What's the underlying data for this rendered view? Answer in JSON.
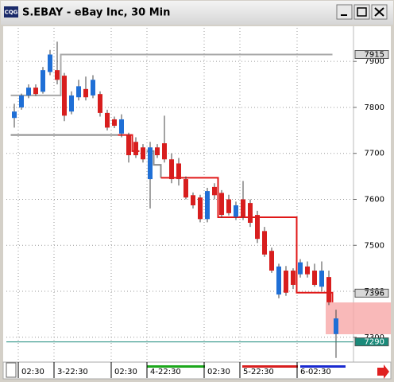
{
  "window": {
    "title": "S.EBAY - eBay Inc, 30 Min",
    "icon": "CQG"
  },
  "chart_data": {
    "type": "candlestick",
    "open": [
      7777,
      7800,
      7826,
      7843,
      7834,
      7877,
      7881,
      7869,
      7791,
      7822,
      7840,
      7826,
      7829,
      7788,
      7774,
      7743,
      7739,
      7725,
      7713,
      7644,
      7713,
      7722,
      7687,
      7678,
      7644,
      7609,
      7604,
      7557,
      7627,
      7614,
      7600,
      7562,
      7600,
      7592,
      7566,
      7531,
      7488,
      7393,
      7445,
      7445,
      7437,
      7454,
      7445,
      7410,
      7431,
      7307
    ],
    "high": [
      7808,
      7830,
      7850,
      7850,
      7888,
      7925,
      7943,
      7875,
      7835,
      7860,
      7867,
      7870,
      7835,
      7795,
      7780,
      7785,
      7745,
      7735,
      7720,
      7725,
      7720,
      7782,
      7700,
      7690,
      7650,
      7615,
      7610,
      7625,
      7635,
      7620,
      7610,
      7595,
      7640,
      7600,
      7575,
      7540,
      7495,
      7460,
      7455,
      7450,
      7470,
      7465,
      7460,
      7465,
      7445,
      7360
    ],
    "low": [
      7756,
      7795,
      7820,
      7825,
      7830,
      7870,
      7850,
      7770,
      7785,
      7815,
      7815,
      7820,
      7780,
      7750,
      7755,
      7735,
      7680,
      7690,
      7680,
      7580,
      7690,
      7680,
      7635,
      7630,
      7600,
      7580,
      7550,
      7550,
      7600,
      7560,
      7565,
      7555,
      7555,
      7540,
      7505,
      7475,
      7440,
      7385,
      7390,
      7405,
      7430,
      7430,
      7410,
      7400,
      7370,
      7255
    ],
    "close": [
      7791,
      7826,
      7843,
      7829,
      7881,
      7915,
      7860,
      7782,
      7826,
      7846,
      7822,
      7860,
      7788,
      7756,
      7760,
      7774,
      7696,
      7696,
      7687,
      7713,
      7696,
      7687,
      7644,
      7644,
      7604,
      7587,
      7557,
      7618,
      7609,
      7566,
      7570,
      7587,
      7562,
      7549,
      7514,
      7480,
      7445,
      7454,
      7397,
      7414,
      7463,
      7437,
      7414,
      7445,
      7376,
      7341
    ],
    "up_color": "#1f6fd6",
    "down_color": "#d81e1e",
    "overlays": [
      {
        "color": "#a8a8a8",
        "values": [
          7826,
          7826,
          7826,
          7826,
          7826,
          7826,
          7826,
          7915,
          7915,
          7915,
          7915,
          7915,
          7915,
          7915,
          7915,
          7915,
          7915,
          7915,
          7915,
          7915,
          7915,
          7915,
          7915,
          7915,
          7915,
          7915,
          7915,
          7915,
          7915,
          7915,
          7915,
          7915,
          7915,
          7915,
          7915,
          7915,
          7915,
          7915,
          7915,
          7915,
          7915,
          7915,
          7915,
          7915,
          7915,
          7915
        ]
      },
      {
        "color": "#8c8c8c",
        "values": [
          7740,
          7740,
          7740,
          7740,
          7740,
          7740,
          7740,
          7740,
          7740,
          7740,
          7740,
          7740,
          7740,
          7740,
          7740,
          7740,
          null,
          null,
          null,
          7705,
          7675,
          7647,
          null,
          null,
          null,
          null,
          null,
          null,
          null,
          null,
          null,
          null,
          null,
          null,
          null,
          null,
          null,
          null,
          null,
          null,
          null,
          null,
          null,
          null,
          null,
          null
        ]
      },
      {
        "color": "#e01818",
        "values": [
          null,
          null,
          null,
          null,
          null,
          null,
          null,
          null,
          null,
          null,
          null,
          null,
          null,
          null,
          null,
          7740,
          7740,
          7705,
          7705,
          null,
          null,
          7647,
          7647,
          7647,
          7647,
          7647,
          7647,
          7647,
          7647,
          7561,
          7561,
          7561,
          7561,
          7561,
          7561,
          7561,
          7561,
          7561,
          7561,
          7561,
          7397,
          7397,
          7397,
          7397,
          7397,
          7376
        ]
      }
    ],
    "ylim": [
      7246,
      7973
    ],
    "yticks": [
      7300,
      7400,
      7500,
      7600,
      7700,
      7800,
      7900
    ],
    "xticks": [
      {
        "value": 1,
        "label": "02:30"
      },
      {
        "value": 6,
        "label": "3-22:30"
      },
      {
        "value": 14,
        "label": "02:30"
      },
      {
        "value": 19,
        "label": "4-22:30"
      },
      {
        "value": 27,
        "label": "02:30"
      },
      {
        "value": 32,
        "label": "5-22:30"
      },
      {
        "value": 40,
        "label": "6-02:30"
      }
    ],
    "price_tags": [
      {
        "value": 7915,
        "color": "#d8d8d8"
      },
      {
        "value": 7396,
        "color": "#d8d8d8"
      },
      {
        "value": 7290,
        "color": "#1a8a7a"
      }
    ],
    "grid": true
  }
}
